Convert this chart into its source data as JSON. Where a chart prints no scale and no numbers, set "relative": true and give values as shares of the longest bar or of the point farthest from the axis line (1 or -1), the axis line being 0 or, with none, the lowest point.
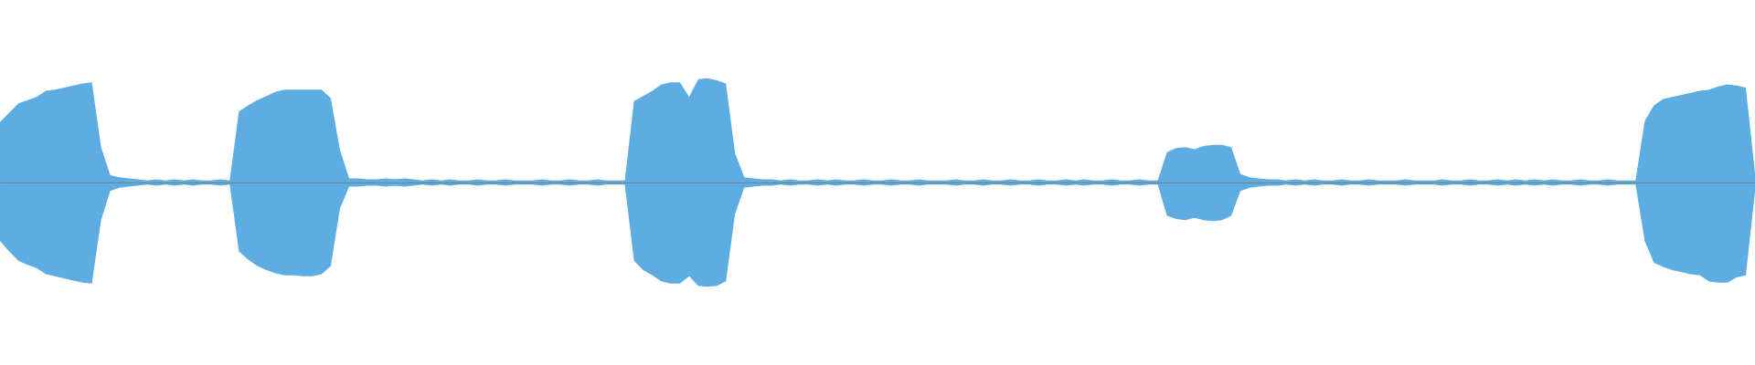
{
  "chart_data": {
    "type": "area",
    "relative": true,
    "categories": [
      null,
      null,
      null,
      null,
      null,
      null,
      null,
      null,
      null,
      null,
      null,
      null,
      null,
      null,
      null,
      null,
      null,
      null,
      null,
      null,
      null,
      null,
      null,
      null,
      null,
      null,
      null,
      null,
      null,
      null,
      null,
      null,
      null,
      null,
      null,
      null,
      null,
      null,
      null,
      null,
      null,
      null,
      null,
      null,
      null,
      null,
      null,
      null,
      null,
      null,
      null,
      null,
      null,
      null,
      null,
      null,
      null,
      null,
      null,
      null,
      null,
      null,
      null,
      null,
      null,
      null,
      null,
      null,
      null,
      null,
      null,
      null,
      null,
      null,
      null,
      null,
      null,
      null,
      null,
      null,
      null,
      null,
      null,
      null,
      null,
      null,
      null,
      null,
      null,
      null,
      null,
      null,
      null,
      null,
      null,
      null,
      null,
      null,
      null,
      null,
      null,
      null,
      null,
      null,
      null,
      null,
      null,
      null,
      null,
      null,
      null,
      null,
      null,
      null,
      null,
      null,
      null,
      null,
      null,
      null,
      null,
      null,
      null,
      null,
      null,
      null,
      null,
      null,
      null,
      null,
      null,
      null,
      null,
      null,
      null,
      null,
      null,
      null,
      null,
      null,
      null,
      null,
      null,
      null,
      null,
      null,
      null,
      null,
      null,
      null,
      null,
      null,
      null,
      null,
      null,
      null,
      null,
      null,
      null,
      null,
      null,
      null,
      null,
      null,
      null,
      null,
      null,
      null,
      null,
      null,
      null,
      null,
      null,
      null,
      null,
      null,
      null,
      null,
      null,
      null,
      null,
      null,
      null,
      null,
      null,
      null,
      null,
      null,
      null,
      null,
      null,
      null
    ],
    "series": [
      {
        "color": "#5dade2",
        "values": [
          0.58,
          0.67,
          0.76,
          0.79,
          0.82,
          0.88,
          0.89,
          0.91,
          0.93,
          0.95,
          0.96,
          0.34,
          0.07,
          0.05,
          0.04,
          0.03,
          0.02,
          0.03,
          0.02,
          0.03,
          0.02,
          0.03,
          0.02,
          0.02,
          0.03,
          0.02,
          0.68,
          0.74,
          0.79,
          0.83,
          0.87,
          0.89,
          0.89,
          0.89,
          0.89,
          0.89,
          0.81,
          0.31,
          0.04,
          0.04,
          0.03,
          0.03,
          0.04,
          0.03,
          0.04,
          0.03,
          0.02,
          0.03,
          0.02,
          0.03,
          0.02,
          0.02,
          0.03,
          0.02,
          0.02,
          0.03,
          0.02,
          0.02,
          0.02,
          0.03,
          0.02,
          0.02,
          0.03,
          0.02,
          0.02,
          0.03,
          0.02,
          0.02,
          0.02,
          0.78,
          0.83,
          0.88,
          0.94,
          0.96,
          0.96,
          0.82,
          0.99,
          1,
          0.98,
          0.95,
          0.28,
          0.05,
          0.04,
          0.03,
          0.03,
          0.02,
          0.03,
          0.02,
          0.02,
          0.03,
          0.02,
          0.03,
          0.02,
          0.02,
          0.03,
          0.02,
          0.02,
          0.03,
          0.02,
          0.02,
          0.03,
          0.02,
          0.02,
          0.02,
          0.03,
          0.02,
          0.02,
          0.03,
          0.02,
          0.02,
          0.03,
          0.02,
          0.02,
          0.03,
          0.02,
          0.02,
          0.03,
          0.02,
          0.03,
          0.02,
          0.02,
          0.03,
          0.02,
          0.02,
          0.03,
          0.02,
          0.02,
          0.29,
          0.33,
          0.34,
          0.32,
          0.35,
          0.36,
          0.36,
          0.34,
          0.08,
          0.05,
          0.04,
          0.03,
          0.03,
          0.02,
          0.03,
          0.02,
          0.03,
          0.02,
          0.02,
          0.03,
          0.02,
          0.02,
          0.03,
          0.02,
          0.02,
          0.02,
          0.03,
          0.02,
          0.02,
          0.02,
          0.03,
          0.02,
          0.02,
          0.03,
          0.02,
          0.02,
          0.03,
          0.02,
          0.03,
          0.02,
          0.03,
          0.02,
          0.03,
          0.02,
          0.02,
          0.03,
          0.02,
          0.02,
          0.03,
          0.02,
          0.02,
          0.02,
          0.59,
          0.74,
          0.8,
          0.82,
          0.84,
          0.86,
          0.88,
          0.89,
          0.92,
          0.94,
          0.93,
          0.91,
          0.09
        ]
      },
      {
        "color": "#5dade3",
        "values": [
          -0.56,
          -0.66,
          -0.75,
          -0.79,
          -0.82,
          -0.88,
          -0.9,
          -0.92,
          -0.94,
          -0.96,
          -0.97,
          -0.36,
          -0.08,
          -0.05,
          -0.04,
          -0.03,
          -0.02,
          -0.03,
          -0.02,
          -0.03,
          -0.02,
          -0.03,
          -0.02,
          -0.02,
          -0.03,
          -0.02,
          -0.66,
          -0.74,
          -0.8,
          -0.84,
          -0.87,
          -0.89,
          -0.89,
          -0.9,
          -0.9,
          -0.88,
          -0.8,
          -0.25,
          -0.04,
          -0.04,
          -0.03,
          -0.03,
          -0.04,
          -0.03,
          -0.04,
          -0.03,
          -0.02,
          -0.03,
          -0.02,
          -0.03,
          -0.02,
          -0.02,
          -0.03,
          -0.02,
          -0.02,
          -0.03,
          -0.02,
          -0.02,
          -0.02,
          -0.03,
          -0.02,
          -0.02,
          -0.03,
          -0.02,
          -0.02,
          -0.03,
          -0.02,
          -0.02,
          -0.02,
          -0.75,
          -0.84,
          -0.89,
          -0.95,
          -0.97,
          -0.97,
          -0.9,
          -0.99,
          -1,
          -0.99,
          -0.95,
          -0.3,
          -0.05,
          -0.04,
          -0.03,
          -0.03,
          -0.02,
          -0.03,
          -0.02,
          -0.02,
          -0.03,
          -0.02,
          -0.03,
          -0.02,
          -0.02,
          -0.03,
          -0.02,
          -0.02,
          -0.03,
          -0.02,
          -0.02,
          -0.03,
          -0.02,
          -0.02,
          -0.02,
          -0.03,
          -0.02,
          -0.02,
          -0.03,
          -0.02,
          -0.02,
          -0.03,
          -0.02,
          -0.02,
          -0.03,
          -0.02,
          -0.02,
          -0.03,
          -0.02,
          -0.03,
          -0.02,
          -0.02,
          -0.03,
          -0.02,
          -0.02,
          -0.03,
          -0.02,
          -0.02,
          -0.32,
          -0.35,
          -0.36,
          -0.34,
          -0.36,
          -0.37,
          -0.36,
          -0.32,
          -0.08,
          -0.05,
          -0.04,
          -0.03,
          -0.03,
          -0.02,
          -0.03,
          -0.02,
          -0.03,
          -0.02,
          -0.02,
          -0.03,
          -0.02,
          -0.02,
          -0.03,
          -0.02,
          -0.02,
          -0.02,
          -0.03,
          -0.02,
          -0.02,
          -0.02,
          -0.03,
          -0.02,
          -0.02,
          -0.03,
          -0.02,
          -0.02,
          -0.03,
          -0.02,
          -0.03,
          -0.02,
          -0.03,
          -0.02,
          -0.03,
          -0.02,
          -0.02,
          -0.03,
          -0.02,
          -0.02,
          -0.03,
          -0.02,
          -0.02,
          -0.02,
          -0.56,
          -0.77,
          -0.81,
          -0.84,
          -0.86,
          -0.88,
          -0.89,
          -0.95,
          -0.96,
          -0.96,
          -0.91,
          -0.89,
          -0.09
        ]
      }
    ]
  }
}
